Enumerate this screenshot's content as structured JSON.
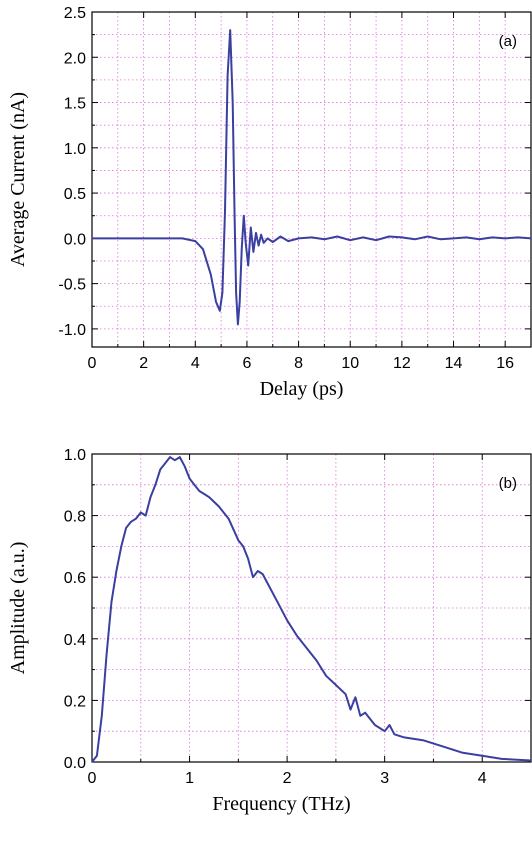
{
  "chart_data": [
    {
      "type": "line",
      "panel_label": "(a)",
      "title": "",
      "xlabel": "Delay (ps)",
      "ylabel": "Average Current (nA)",
      "xlim": [
        0,
        17
      ],
      "ylim": [
        -1.2,
        2.5
      ],
      "xticks": [
        0,
        2,
        4,
        6,
        8,
        10,
        12,
        14,
        16
      ],
      "yticks": [
        -1.0,
        -0.5,
        0.0,
        0.5,
        1.0,
        1.5,
        2.0,
        2.5
      ],
      "ytick_labels": [
        "-1.0",
        "-0.5",
        "0.0",
        "0.5",
        "1.0",
        "1.5",
        "2.0",
        "2.5"
      ],
      "grid": true,
      "color": "#3a3fa0",
      "series": [
        {
          "x": [
            0,
            1,
            2,
            3,
            3.5,
            4.0,
            4.3,
            4.6,
            4.8,
            4.95,
            5.05,
            5.15,
            5.25,
            5.35,
            5.45,
            5.52,
            5.58,
            5.65,
            5.72,
            5.8,
            5.88,
            5.95,
            6.05,
            6.15,
            6.25,
            6.35,
            6.45,
            6.55,
            6.65,
            6.8,
            7.0,
            7.3,
            7.6,
            8.0,
            8.5,
            9.0,
            9.5,
            10.0,
            10.5,
            11.0,
            11.5,
            12.0,
            12.5,
            13.0,
            13.5,
            14.0,
            14.5,
            15.0,
            15.5,
            16.0,
            16.5,
            17.0
          ],
          "y": [
            0.0,
            0.0,
            0.0,
            0.0,
            0.0,
            -0.03,
            -0.12,
            -0.4,
            -0.7,
            -0.8,
            -0.6,
            0.3,
            1.8,
            2.3,
            1.5,
            0.3,
            -0.6,
            -0.95,
            -0.7,
            -0.1,
            0.25,
            -0.05,
            -0.3,
            0.12,
            -0.15,
            0.06,
            -0.08,
            0.04,
            -0.05,
            0.0,
            -0.04,
            0.02,
            -0.03,
            0.0,
            0.01,
            -0.01,
            0.02,
            -0.02,
            0.01,
            -0.02,
            0.02,
            0.01,
            -0.01,
            0.02,
            -0.01,
            0.0,
            0.01,
            -0.01,
            0.01,
            0.0,
            0.01,
            0.0
          ]
        }
      ]
    },
    {
      "type": "line",
      "panel_label": "(b)",
      "title": "",
      "xlabel": "Frequency (THz)",
      "ylabel": "Amplitude (a.u.)",
      "xlim": [
        0,
        4.5
      ],
      "ylim": [
        0.0,
        1.0
      ],
      "xticks": [
        0,
        1,
        2,
        3,
        4
      ],
      "yticks": [
        0.0,
        0.2,
        0.4,
        0.6,
        0.8,
        1.0
      ],
      "ytick_labels": [
        "0.0",
        "0.2",
        "0.4",
        "0.6",
        "0.8",
        "1.0"
      ],
      "grid": true,
      "color": "#3a3fa0",
      "series": [
        {
          "x": [
            0.0,
            0.05,
            0.1,
            0.15,
            0.2,
            0.25,
            0.3,
            0.35,
            0.4,
            0.45,
            0.5,
            0.55,
            0.6,
            0.65,
            0.7,
            0.75,
            0.8,
            0.85,
            0.9,
            0.95,
            1.0,
            1.05,
            1.1,
            1.15,
            1.2,
            1.3,
            1.4,
            1.5,
            1.55,
            1.6,
            1.65,
            1.7,
            1.75,
            1.8,
            1.9,
            2.0,
            2.1,
            2.2,
            2.3,
            2.4,
            2.5,
            2.6,
            2.65,
            2.7,
            2.75,
            2.8,
            2.9,
            3.0,
            3.05,
            3.1,
            3.2,
            3.4,
            3.6,
            3.8,
            4.0,
            4.2,
            4.5
          ],
          "y": [
            0.0,
            0.02,
            0.15,
            0.35,
            0.52,
            0.62,
            0.7,
            0.76,
            0.78,
            0.79,
            0.81,
            0.8,
            0.86,
            0.9,
            0.95,
            0.97,
            0.99,
            0.98,
            0.99,
            0.96,
            0.92,
            0.9,
            0.88,
            0.87,
            0.86,
            0.83,
            0.79,
            0.72,
            0.7,
            0.66,
            0.6,
            0.62,
            0.61,
            0.58,
            0.52,
            0.46,
            0.41,
            0.37,
            0.33,
            0.28,
            0.25,
            0.22,
            0.17,
            0.21,
            0.15,
            0.16,
            0.12,
            0.1,
            0.12,
            0.09,
            0.08,
            0.07,
            0.05,
            0.03,
            0.02,
            0.01,
            0.005
          ]
        }
      ]
    }
  ]
}
